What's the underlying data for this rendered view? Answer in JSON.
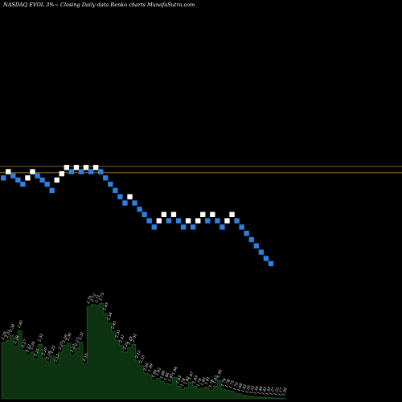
{
  "chart_data": {
    "type": "renko",
    "title": "NASDAQ EVOL  3%~  Closing Daily data  Renko  charts MunafaSutra.com",
    "reference_lines": [
      2.48,
      2.42
    ],
    "colors": {
      "background": "#000000",
      "up_brick": "#ffffff",
      "down_brick": "#2e7fe0",
      "reference_line": "#b5763a",
      "volume_fill": "#0d3311",
      "volume_line": "#27672b"
    },
    "bricks": [
      {
        "value": 2.37,
        "dir": "down"
      },
      {
        "value": 2.43,
        "dir": "up"
      },
      {
        "value": 2.39,
        "dir": "down"
      },
      {
        "value": 2.35,
        "dir": "down"
      },
      {
        "value": 2.31,
        "dir": "down"
      },
      {
        "value": 2.37,
        "dir": "up"
      },
      {
        "value": 2.43,
        "dir": "up"
      },
      {
        "value": 2.39,
        "dir": "down"
      },
      {
        "value": 2.35,
        "dir": "down"
      },
      {
        "value": 2.31,
        "dir": "down"
      },
      {
        "value": 2.25,
        "dir": "down"
      },
      {
        "value": 2.35,
        "dir": "up"
      },
      {
        "value": 2.41,
        "dir": "up"
      },
      {
        "value": 2.47,
        "dir": "up"
      },
      {
        "value": 2.43,
        "dir": "down"
      },
      {
        "value": 2.47,
        "dir": "up"
      },
      {
        "value": 2.43,
        "dir": "down"
      },
      {
        "value": 2.47,
        "dir": "up"
      },
      {
        "value": 2.43,
        "dir": "down"
      },
      {
        "value": 2.47,
        "dir": "up"
      },
      {
        "value": 2.43,
        "dir": "down"
      },
      {
        "value": 2.37,
        "dir": "down"
      },
      {
        "value": 2.31,
        "dir": "down"
      },
      {
        "value": 2.25,
        "dir": "down"
      },
      {
        "value": 2.19,
        "dir": "down"
      },
      {
        "value": 2.13,
        "dir": "down"
      },
      {
        "value": 2.19,
        "dir": "up"
      },
      {
        "value": 2.13,
        "dir": "down"
      },
      {
        "value": 2.07,
        "dir": "down"
      },
      {
        "value": 2.02,
        "dir": "down"
      },
      {
        "value": 1.96,
        "dir": "down"
      },
      {
        "value": 1.9,
        "dir": "down"
      },
      {
        "value": 1.96,
        "dir": "up"
      },
      {
        "value": 2.02,
        "dir": "up"
      },
      {
        "value": 1.96,
        "dir": "down"
      },
      {
        "value": 2.02,
        "dir": "up"
      },
      {
        "value": 1.96,
        "dir": "down"
      },
      {
        "value": 1.9,
        "dir": "down"
      },
      {
        "value": 1.96,
        "dir": "up"
      },
      {
        "value": 1.9,
        "dir": "down"
      },
      {
        "value": 1.96,
        "dir": "up"
      },
      {
        "value": 2.02,
        "dir": "up"
      },
      {
        "value": 1.96,
        "dir": "down"
      },
      {
        "value": 2.02,
        "dir": "up"
      },
      {
        "value": 1.96,
        "dir": "down"
      },
      {
        "value": 1.9,
        "dir": "down"
      },
      {
        "value": 1.96,
        "dir": "up"
      },
      {
        "value": 2.02,
        "dir": "up"
      },
      {
        "value": 1.96,
        "dir": "down"
      },
      {
        "value": 1.9,
        "dir": "down"
      },
      {
        "value": 1.84,
        "dir": "down"
      },
      {
        "value": 1.78,
        "dir": "down"
      },
      {
        "value": 1.72,
        "dir": "down"
      },
      {
        "value": 1.66,
        "dir": "down"
      },
      {
        "value": 1.6,
        "dir": "down"
      },
      {
        "value": 1.55,
        "dir": "down"
      }
    ],
    "volume_labels": [
      "2.29",
      "2.31",
      "2.34",
      "2.28",
      "2.45",
      "2.27",
      "2.22",
      "2.26",
      "2.21",
      "2.32",
      "2.20",
      "2.18",
      "2.22",
      "2.13",
      "2.25",
      "2.29",
      "2.30",
      "2.22",
      "2.27",
      "2.31",
      "2.15",
      "2.70",
      "2.72",
      "2.71",
      "2.73",
      "2.65",
      "2.54",
      "2.45",
      "2.35",
      "2.31",
      "2.25",
      "2.29",
      "2.32",
      "2.15",
      "2.10",
      "2.00",
      "1.99",
      "1.90",
      "1.92",
      "1.88",
      "1.86",
      "1.85",
      "1.94",
      "1.83",
      "1.79",
      "1.82",
      "1.87",
      "1.83",
      "1.79",
      "1.80",
      "1.81",
      "1.78",
      "1.82",
      "1.90",
      "1.79",
      "1.78",
      "1.75",
      "1.70",
      "1.68",
      "1.62",
      "1.55",
      "1.52",
      "1.50",
      "1.48",
      "1.45",
      "1.33",
      "1.27",
      "1.22",
      "1.17",
      "1.09"
    ],
    "volume_levels": [
      0.58,
      0.6,
      0.66,
      0.54,
      0.7,
      0.5,
      0.45,
      0.48,
      0.41,
      0.56,
      0.42,
      0.38,
      0.44,
      0.35,
      0.48,
      0.55,
      0.57,
      0.45,
      0.52,
      0.58,
      0.36,
      0.95,
      0.97,
      0.96,
      0.98,
      0.88,
      0.78,
      0.69,
      0.6,
      0.55,
      0.48,
      0.53,
      0.56,
      0.39,
      0.34,
      0.26,
      0.25,
      0.19,
      0.21,
      0.18,
      0.16,
      0.15,
      0.22,
      0.13,
      0.1,
      0.12,
      0.17,
      0.13,
      0.1,
      0.11,
      0.12,
      0.09,
      0.13,
      0.19,
      0.1,
      0.09,
      0.08,
      0.06,
      0.05,
      0.04,
      0.03,
      0.025,
      0.02,
      0.018,
      0.015,
      0.012,
      0.01,
      0.008,
      0.005,
      0.003
    ]
  }
}
